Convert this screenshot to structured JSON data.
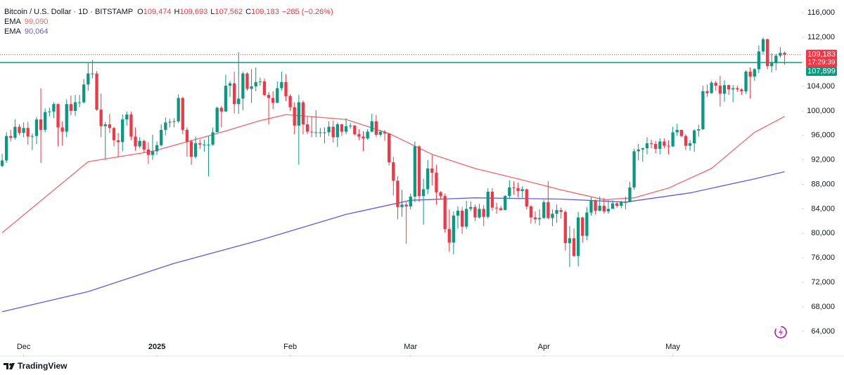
{
  "chart_data": {
    "type": "candlestick",
    "header": {
      "symbol": "Bitcoin / U.S. Dollar · 1D · BITSTAMP",
      "ohlc": [
        {
          "key": "O",
          "label": "109,474"
        },
        {
          "key": "H",
          "label": "109,693"
        },
        {
          "key": "L",
          "label": "107,562"
        },
        {
          "key": "C",
          "label": "109,183"
        }
      ],
      "change_label": "−285 (−0.26%)"
    },
    "up_color": "#089981",
    "down_color": "#f23645",
    "open": [
      91000,
      91900,
      95900,
      95600,
      97400,
      96400,
      97200,
      95800,
      95900,
      98600,
      96900,
      99800,
      99900,
      101100,
      97300,
      96600,
      101100,
      100000,
      101400,
      101400,
      104300,
      106100,
      106100,
      100200,
      97500,
      97800,
      97200,
      95200,
      94900,
      98600,
      99400,
      95800,
      94200,
      95100,
      93700,
      92800,
      93400,
      94400,
      96900,
      98100,
      98200,
      98300,
      102100,
      96900,
      95000,
      92500,
      94700,
      94500,
      94500,
      94500,
      96500,
      100500,
      99900,
      104100,
      104500,
      101100,
      102000,
      106100,
      103600,
      104000,
      104700,
      104800,
      102600,
      102100,
      101300,
      103700,
      104700,
      102400,
      100600,
      97600,
      101400,
      97800,
      96600,
      96500,
      96500,
      96500,
      96500,
      97400,
      95700,
      97800,
      96600,
      97500,
      97600,
      96200,
      95800,
      95500,
      96600,
      98300,
      96100,
      96600,
      96300,
      91600,
      88600,
      84300,
      84700,
      84400,
      86000,
      94200,
      86100,
      87200,
      90600,
      89900,
      86700,
      86100,
      80700,
      78500,
      82900,
      83700,
      81100,
      84000,
      84300,
      82600,
      84000,
      82700,
      86800,
      84200,
      84100,
      83800,
      86100,
      87500,
      87400,
      86900,
      87200,
      84400,
      82600,
      82300,
      82500,
      85100,
      82500,
      83200,
      83800,
      83500,
      78400,
      79200,
      76300,
      82600,
      79600,
      83400,
      85300,
      83700,
      84500,
      83600,
      84000,
      84900,
      84500,
      85100,
      85100,
      87500,
      93400,
      93700,
      93900,
      94700,
      94600,
      93800,
      95000,
      94300,
      94200,
      96500,
      96900,
      95900,
      94300,
      94700,
      96800,
      97000,
      103200,
      102900,
      104600,
      104100,
      102800,
      104200,
      103500,
      103700,
      103500,
      103200,
      106400,
      105600,
      106800,
      109700,
      111700,
      107300,
      107800,
      109000,
      109474
    ],
    "high": [
      93000,
      96500,
      96900,
      98600,
      97800,
      98100,
      98200,
      96300,
      99000,
      103700,
      100400,
      100500,
      101400,
      101200,
      98300,
      101900,
      102500,
      102600,
      102600,
      105200,
      107800,
      108300,
      106500,
      102800,
      98200,
      99500,
      97400,
      96400,
      99400,
      99900,
      99900,
      97300,
      95700,
      95300,
      94900,
      96100,
      95000,
      97800,
      98900,
      98700,
      98800,
      102700,
      102300,
      97300,
      95300,
      95800,
      95300,
      95300,
      95900,
      97300,
      100700,
      100800,
      105900,
      104900,
      106400,
      109600,
      106400,
      106300,
      106800,
      107100,
      105400,
      105300,
      103100,
      103200,
      104800,
      106400,
      106000,
      102700,
      101400,
      102600,
      101700,
      99000,
      99100,
      100100,
      97200,
      97300,
      98300,
      98400,
      98100,
      97900,
      98800,
      98000,
      97700,
      97000,
      96700,
      97000,
      99500,
      99300,
      96900,
      96900,
      96400,
      92500,
      89300,
      87100,
      85100,
      86500,
      95000,
      94400,
      88900,
      92000,
      92800,
      91200,
      86900,
      86500,
      83900,
      83600,
      84400,
      84300,
      85300,
      85200,
      84700,
      84800,
      84600,
      87400,
      87400,
      85000,
      84500,
      86200,
      88700,
      88500,
      88300,
      87700,
      87300,
      84600,
      83600,
      83900,
      85500,
      88500,
      83900,
      84700,
      84200,
      83800,
      81200,
      80800,
      83500,
      82700,
      84300,
      85900,
      85500,
      86000,
      85800,
      85400,
      85400,
      85100,
      85300,
      86000,
      88400,
      93800,
      94600,
      94000,
      95700,
      95300,
      95100,
      95500,
      95500,
      95200,
      97400,
      97900,
      96900,
      96200,
      95200,
      97000,
      97700,
      104100,
      104300,
      104900,
      104900,
      105700,
      105000,
      104300,
      104200,
      104100,
      103700,
      106600,
      107100,
      107000,
      110700,
      112000,
      111800,
      109400,
      109300,
      110400,
      109693
    ],
    "low": [
      90800,
      91500,
      95000,
      95300,
      96000,
      95700,
      94500,
      93600,
      94600,
      91500,
      96500,
      99100,
      98800,
      94200,
      94300,
      95700,
      99300,
      99200,
      100600,
      101200,
      103300,
      105300,
      100000,
      95700,
      92200,
      96400,
      94200,
      92400,
      93400,
      97600,
      95200,
      93500,
      93900,
      93100,
      91400,
      92000,
      92800,
      94200,
      96000,
      97300,
      97300,
      98000,
      96200,
      92500,
      91200,
      92200,
      93800,
      93300,
      89300,
      94300,
      96500,
      97300,
      99900,
      102300,
      99600,
      99500,
      100100,
      103300,
      101300,
      103200,
      104100,
      102400,
      97800,
      100300,
      101300,
      103300,
      101600,
      100000,
      96200,
      91200,
      96200,
      96200,
      95700,
      95700,
      95700,
      94700,
      95900,
      94800,
      94100,
      95900,
      96200,
      97100,
      96000,
      95200,
      93400,
      95300,
      96500,
      95800,
      95800,
      95100,
      91100,
      86200,
      82300,
      82700,
      78300,
      83900,
      85100,
      85100,
      81400,
      86400,
      87800,
      84700,
      85600,
      80100,
      77000,
      76600,
      80800,
      79900,
      80700,
      83600,
      82000,
      82400,
      81200,
      82400,
      83700,
      83200,
      83700,
      83800,
      85600,
      86300,
      85900,
      85800,
      83900,
      81600,
      81600,
      81300,
      82400,
      82300,
      81200,
      81700,
      82400,
      77200,
      74500,
      76200,
      74600,
      78500,
      78900,
      82900,
      83100,
      83600,
      83200,
      83200,
      84100,
      84200,
      84100,
      83900,
      85100,
      87100,
      91900,
      91700,
      92900,
      93900,
      93100,
      92900,
      93900,
      92900,
      94100,
      95900,
      95700,
      93600,
      93500,
      93300,
      95800,
      96900,
      102300,
      102800,
      103300,
      100700,
      101500,
      102600,
      101400,
      103100,
      102600,
      102800,
      102000,
      104900,
      106200,
      109300,
      106800,
      106300,
      106600,
      108700,
      107562
    ],
    "close": [
      91900,
      95900,
      95600,
      97400,
      96400,
      97200,
      95800,
      95900,
      98600,
      96900,
      99800,
      99900,
      101100,
      97300,
      96600,
      101100,
      100000,
      101400,
      101400,
      104300,
      106100,
      106100,
      100200,
      97500,
      97800,
      97200,
      95200,
      94900,
      98600,
      99400,
      95800,
      94200,
      95100,
      93700,
      92800,
      93400,
      94400,
      96900,
      98100,
      98200,
      98300,
      102100,
      96900,
      95000,
      92500,
      94700,
      94500,
      94500,
      94500,
      96500,
      100500,
      99900,
      104100,
      104500,
      101100,
      102000,
      106100,
      103600,
      104000,
      104700,
      104800,
      102600,
      102100,
      101300,
      103700,
      104700,
      102400,
      100600,
      97600,
      101400,
      97800,
      96600,
      96500,
      96500,
      96500,
      96500,
      97400,
      95700,
      97800,
      96600,
      97500,
      97600,
      96200,
      95800,
      95500,
      96600,
      98300,
      96100,
      96600,
      96300,
      91600,
      88600,
      84300,
      84700,
      84400,
      86000,
      94200,
      86100,
      87200,
      90600,
      89900,
      86700,
      86100,
      80700,
      78500,
      82900,
      83700,
      81100,
      84000,
      84300,
      82600,
      84000,
      82700,
      86800,
      84200,
      84100,
      83800,
      86100,
      87500,
      87400,
      86900,
      87200,
      84400,
      82600,
      82300,
      82500,
      85100,
      82500,
      83200,
      83800,
      83500,
      78400,
      79200,
      76300,
      82600,
      79600,
      83400,
      85300,
      83700,
      84500,
      83600,
      84000,
      84900,
      84500,
      85100,
      85100,
      87500,
      93400,
      93700,
      93900,
      94700,
      94600,
      93800,
      95000,
      94300,
      94200,
      96500,
      96900,
      95900,
      94300,
      94700,
      96800,
      97000,
      103200,
      102900,
      104600,
      104100,
      102800,
      104200,
      103500,
      103700,
      103500,
      103200,
      106400,
      105600,
      106800,
      109700,
      111700,
      107300,
      107800,
      109000,
      109468,
      109183
    ],
    "series": [
      {
        "name": "EMA",
        "color": "#f2656b",
        "last_label": "99,090",
        "x": [
          0,
          20,
          35,
          50,
          60,
          66,
          80,
          90,
          100,
          110,
          120,
          130,
          140,
          147,
          155,
          165,
          175,
          182
        ],
        "values": [
          80100,
          91700,
          93400,
          96300,
          98400,
          99400,
          98600,
          96300,
          92900,
          90600,
          88900,
          87100,
          85500,
          85800,
          87400,
          90600,
          96500,
          99090
        ]
      },
      {
        "name": "EMA",
        "color": "#5e5ce6",
        "last_label": "90,064",
        "x": [
          0,
          20,
          40,
          60,
          80,
          95,
          110,
          130,
          145,
          160,
          175,
          182
        ],
        "values": [
          67200,
          70500,
          75100,
          78900,
          83100,
          85400,
          85800,
          85600,
          85100,
          86600,
          88900,
          90064
        ]
      }
    ],
    "hline": {
      "value": 107899,
      "label": "107,899",
      "color": "#089981"
    },
    "last_price": {
      "label": "109,183",
      "countdown": "17:29:39"
    },
    "xlim": [
      -0.5,
      186
    ],
    "xticks": [
      {
        "value": 5,
        "label": "Dec"
      },
      {
        "value": 36,
        "label": "2025"
      },
      {
        "value": 67,
        "label": "Feb"
      },
      {
        "value": 95,
        "label": "Mar"
      },
      {
        "value": 126,
        "label": "Apr"
      },
      {
        "value": 156,
        "label": "May"
      }
    ],
    "ylim": [
      60200,
      118100
    ],
    "yticks": [
      {
        "value": 64000,
        "label": "64,000"
      },
      {
        "value": 68000,
        "label": "68,000"
      },
      {
        "value": 72000,
        "label": "72,000"
      },
      {
        "value": 76000,
        "label": "76,000"
      },
      {
        "value": 80000,
        "label": "80,000"
      },
      {
        "value": 84000,
        "label": "84,000"
      },
      {
        "value": 88000,
        "label": "88,000"
      },
      {
        "value": 92000,
        "label": "92,000"
      },
      {
        "value": 96000,
        "label": "96,000"
      },
      {
        "value": 100000,
        "label": "100,000"
      },
      {
        "value": 104000,
        "label": "104,000"
      },
      {
        "value": 108000,
        "label": "108,000"
      },
      {
        "value": 112000,
        "label": "112,000"
      },
      {
        "value": 116000,
        "label": "116,000"
      }
    ],
    "grid": false,
    "brand": "TradingView"
  }
}
